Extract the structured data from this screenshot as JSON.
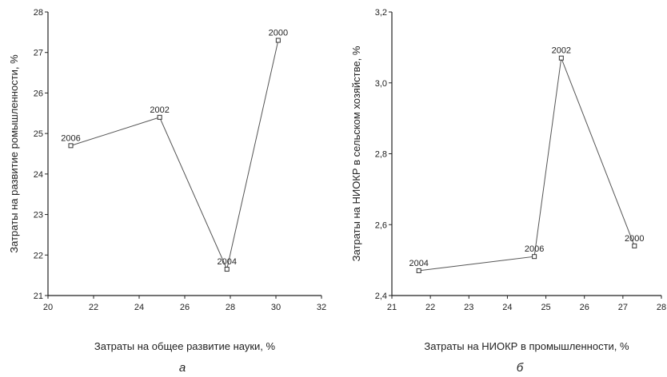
{
  "chart_data": [
    {
      "type": "line",
      "panel_label": "а",
      "xlabel": "Затраты на общее развитие науки, %",
      "ylabel": "Затраты на развитие ромышленности, %",
      "xlim": [
        20,
        32
      ],
      "ylim": [
        21,
        28
      ],
      "x_ticks": [
        20,
        22,
        24,
        26,
        28,
        30,
        32
      ],
      "y_ticks": [
        21,
        22,
        23,
        24,
        25,
        26,
        27,
        28
      ],
      "x_tick_labels": [
        "20",
        "22",
        "24",
        "26",
        "28",
        "30",
        "32"
      ],
      "y_tick_labels": [
        "21",
        "22",
        "23",
        "24",
        "25",
        "26",
        "27",
        "28"
      ],
      "grid": false,
      "points": [
        {
          "label": "2006",
          "x": 21.0,
          "y": 24.7
        },
        {
          "label": "2002",
          "x": 24.9,
          "y": 25.4
        },
        {
          "label": "2004",
          "x": 27.85,
          "y": 21.65
        },
        {
          "label": "2000",
          "x": 30.1,
          "y": 27.3
        }
      ]
    },
    {
      "type": "line",
      "panel_label": "б",
      "xlabel": "Затраты на НИОКР в промышленности, %",
      "ylabel": "Затраты на НИОКР в сельском хозяйстве, %",
      "xlim": [
        21,
        28
      ],
      "ylim": [
        2.4,
        3.2
      ],
      "x_ticks": [
        21,
        22,
        23,
        24,
        25,
        26,
        27,
        28
      ],
      "y_ticks": [
        2.4,
        2.6,
        2.8,
        3.0,
        3.2
      ],
      "x_tick_labels": [
        "21",
        "22",
        "23",
        "24",
        "25",
        "26",
        "27",
        "28"
      ],
      "y_tick_labels": [
        "2,4",
        "2,6",
        "2,8",
        "3,0",
        "3,2"
      ],
      "grid": false,
      "points": [
        {
          "label": "2004",
          "x": 21.7,
          "y": 2.47
        },
        {
          "label": "2006",
          "x": 24.7,
          "y": 2.51
        },
        {
          "label": "2002",
          "x": 25.4,
          "y": 3.07
        },
        {
          "label": "2000",
          "x": 27.3,
          "y": 2.54
        }
      ]
    }
  ]
}
